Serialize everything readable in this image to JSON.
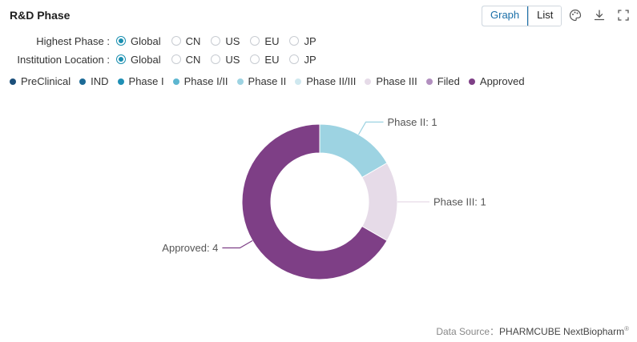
{
  "header": {
    "title": "R&D Phase",
    "view_toggle": [
      "Graph",
      "List"
    ],
    "active_view": "Graph"
  },
  "filters": [
    {
      "label": "Highest Phase :",
      "options": [
        "Global",
        "CN",
        "US",
        "EU",
        "JP"
      ],
      "selected": "Global"
    },
    {
      "label": "Institution Location :",
      "options": [
        "Global",
        "CN",
        "US",
        "EU",
        "JP"
      ],
      "selected": "Global"
    }
  ],
  "toolbar_icons": [
    "palette-icon",
    "download-icon",
    "fullscreen-icon"
  ],
  "legend": [
    {
      "label": "PreClinical",
      "color": "#1b4f7a"
    },
    {
      "label": "IND",
      "color": "#1c6a96"
    },
    {
      "label": "Phase I",
      "color": "#1f8fb5"
    },
    {
      "label": "Phase I/II",
      "color": "#5db6d0"
    },
    {
      "label": "Phase II",
      "color": "#9dd3e2"
    },
    {
      "label": "Phase II/III",
      "color": "#cfe8ef"
    },
    {
      "label": "Phase III",
      "color": "#e6dbe8"
    },
    {
      "label": "Filed",
      "color": "#b28fbf"
    },
    {
      "label": "Approved",
      "color": "#7e3f86"
    }
  ],
  "chart_data": {
    "type": "pie",
    "donut": true,
    "slices": [
      {
        "name": "Phase II",
        "value": 1,
        "color": "#9dd3e2",
        "label": "Phase II: 1"
      },
      {
        "name": "Phase III",
        "value": 1,
        "color": "#e6dbe8",
        "label": "Phase III: 1"
      },
      {
        "name": "Approved",
        "value": 4,
        "color": "#7e3f86",
        "label": "Approved: 4"
      }
    ],
    "legend_placement": "top"
  },
  "footer": {
    "source_label": "Data Source：",
    "source_name": "PHARMCUBE NextBiopharm",
    "source_mark": "®"
  }
}
